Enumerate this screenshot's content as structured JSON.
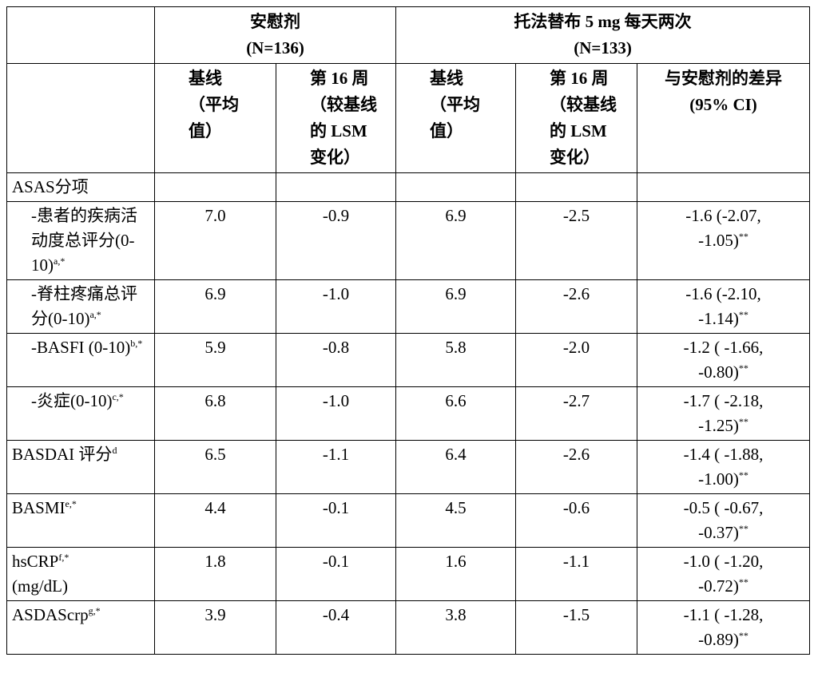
{
  "header": {
    "groups": [
      {
        "name": "安慰剂",
        "n": "(N=136)"
      },
      {
        "name": "托法替布 5 mg 每天两次",
        "n": "(N=133)"
      }
    ],
    "columns": [
      "基线\n（平均\n值）",
      "第 16 周\n（较基线\n的 LSM\n变化）",
      "基线\n（平均\n值）",
      "第 16 周\n（较基线\n的 LSM\n变化）",
      "与安慰剂的差异\n(95% CI)"
    ]
  },
  "rows": [
    {
      "label": "ASAS分项",
      "items": [
        {
          "label": "-患者的疾病活动度总评分(0-10)",
          "sup": "a,*",
          "values": [
            "7.0",
            "-0.9",
            "6.9",
            "-2.5",
            "-1.6 (-2.07, -1.05)"
          ],
          "diff_sup": "**"
        },
        {
          "label": "-脊柱疼痛总评分(0-10)",
          "sup": "a,*",
          "values": [
            "6.9",
            "-1.0",
            "6.9",
            "-2.6",
            "-1.6 (-2.10, -1.14)"
          ],
          "diff_sup": "**"
        },
        {
          "label": "-BASFI (0-10)",
          "sup": "b,*",
          "values": [
            "5.9",
            "-0.8",
            "5.8",
            "-2.0",
            "-1.2 ( -1.66, -0.80)"
          ],
          "diff_sup": "**"
        },
        {
          "label": "-炎症(0-10)",
          "sup": "c,*",
          "values": [
            "6.8",
            "-1.0",
            "6.6",
            "-2.7",
            "-1.7 ( -2.18, -1.25)"
          ],
          "diff_sup": "**"
        }
      ]
    },
    {
      "label": "BASDAI 评分",
      "sup": "d",
      "values": [
        "6.5",
        "-1.1",
        "6.4",
        "-2.6",
        "-1.4 ( -1.88, -1.00)"
      ],
      "diff_sup": "**"
    },
    {
      "label": "BASMI",
      "sup": "e,*",
      "values": [
        "4.4",
        "-0.1",
        "4.5",
        "-0.6",
        "-0.5 ( -0.67, -0.37)"
      ],
      "diff_sup": "**"
    },
    {
      "label": "hsCRP",
      "sup": "f,*",
      "unit": "(mg/dL)",
      "values": [
        "1.8",
        "-0.1",
        "1.6",
        "-1.1",
        "-1.0 ( -1.20, -0.72)"
      ],
      "diff_sup": "**"
    },
    {
      "label": "ASDAScrp",
      "sup": "g,*",
      "values": [
        "3.9",
        "-0.4",
        "3.8",
        "-1.5",
        "-1.1 ( -1.28, -0.89)"
      ],
      "diff_sup": "**"
    }
  ]
}
